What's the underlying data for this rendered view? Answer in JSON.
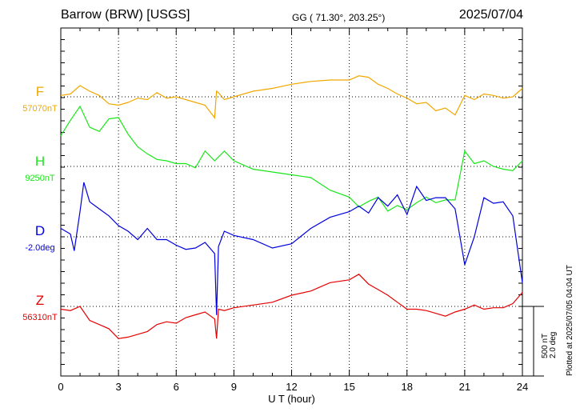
{
  "header": {
    "station": "Barrow (BRW)  [USGS]",
    "coordinates": "GG ( 71.30°, 203.25°)",
    "date": "2025/07/04"
  },
  "footer_note": "Plotted at 2025/07/05 04:04 UT",
  "scale_bar": {
    "labels": [
      "500 nT",
      "2.0 deg"
    ]
  },
  "colors": {
    "F": "#f0a800",
    "H": "#19e619",
    "D": "#0000dd",
    "Z": "#e60000"
  },
  "chart_data": {
    "type": "line",
    "xlabel": "U T (hour)",
    "xlim": [
      0,
      24
    ],
    "xticks": [
      0,
      3,
      6,
      9,
      12,
      15,
      18,
      21,
      24
    ],
    "grid": true,
    "series": [
      {
        "name": "F",
        "baseline_label": "57070nT",
        "color": "#f0a800",
        "x": [
          0,
          0.5,
          1,
          1.5,
          2,
          2.5,
          3,
          3.5,
          4,
          4.5,
          5,
          5.5,
          6,
          6.5,
          7,
          7.5,
          8,
          8.1,
          8.2,
          8.5,
          9,
          10,
          11,
          12,
          13,
          14,
          15,
          15.5,
          16,
          16.5,
          17,
          17.5,
          18,
          18.5,
          19,
          19.5,
          20,
          20.5,
          21,
          21.5,
          22,
          22.5,
          23,
          23.5,
          24
        ],
        "y": [
          10,
          20,
          80,
          40,
          10,
          -50,
          -60,
          -40,
          -10,
          -20,
          30,
          -10,
          0,
          -20,
          -40,
          -60,
          -150,
          40,
          30,
          -20,
          0,
          40,
          60,
          90,
          110,
          120,
          120,
          150,
          140,
          90,
          60,
          20,
          -10,
          -50,
          -40,
          -100,
          -80,
          -130,
          10,
          -20,
          20,
          10,
          -10,
          0,
          60
        ]
      },
      {
        "name": "H",
        "baseline_label": "9250nT",
        "color": "#19e619",
        "x": [
          0,
          0.5,
          1,
          1.5,
          2,
          2.5,
          3,
          3.5,
          4,
          4.5,
          5,
          5.5,
          6,
          6.5,
          7,
          7.5,
          8,
          8.5,
          9,
          9.5,
          10,
          11,
          12,
          13,
          14,
          15,
          15.5,
          16,
          16.5,
          17,
          17.5,
          18,
          18.5,
          19,
          19.5,
          20,
          20.5,
          21,
          21.5,
          22,
          22.5,
          23,
          23.5,
          24
        ],
        "y": [
          220,
          330,
          430,
          280,
          250,
          340,
          350,
          230,
          140,
          90,
          50,
          40,
          20,
          20,
          -10,
          110,
          40,
          110,
          40,
          10,
          -20,
          -40,
          -60,
          -80,
          -170,
          -220,
          -290,
          -250,
          -220,
          -320,
          -280,
          -310,
          -260,
          -220,
          -260,
          -240,
          -240,
          110,
          20,
          40,
          0,
          -20,
          -30,
          40
        ]
      },
      {
        "name": "D",
        "baseline_label": "-2.0deg",
        "color": "#0000dd",
        "x": [
          0,
          0.5,
          0.7,
          1,
          1.2,
          1.5,
          2,
          2.5,
          3,
          3.5,
          4,
          4.5,
          5,
          5.5,
          6,
          6.5,
          7,
          7.5,
          8,
          8.1,
          8.2,
          8.5,
          9,
          10,
          11,
          12,
          13,
          14,
          15,
          15.5,
          16,
          16.5,
          17,
          17.5,
          18,
          18.5,
          19,
          19.5,
          20,
          20.5,
          21,
          21.5,
          22,
          22.5,
          23,
          23.5,
          24
        ],
        "y": [
          60,
          20,
          -100,
          180,
          390,
          250,
          200,
          150,
          80,
          40,
          -20,
          60,
          -20,
          -20,
          -60,
          -90,
          -80,
          -40,
          -120,
          -560,
          -70,
          40,
          10,
          -20,
          -80,
          -50,
          60,
          140,
          180,
          220,
          170,
          280,
          220,
          300,
          160,
          360,
          260,
          280,
          280,
          200,
          -200,
          0,
          280,
          240,
          250,
          150,
          -330
        ]
      },
      {
        "name": "Z",
        "baseline_label": "56310nT",
        "color": "#e60000",
        "x": [
          0,
          0.5,
          1,
          1.5,
          2,
          2.5,
          3,
          3.5,
          4,
          4.5,
          5,
          5.5,
          6,
          6.5,
          7,
          7.5,
          8,
          8.1,
          8.2,
          8.5,
          9,
          10,
          11,
          12,
          13,
          14,
          15,
          15.5,
          16,
          16.5,
          17,
          17.5,
          18,
          18.5,
          19,
          19.5,
          20,
          20.5,
          21,
          21.5,
          22,
          22.5,
          23,
          23.5,
          24
        ],
        "y": [
          -20,
          -30,
          0,
          -100,
          -130,
          -160,
          -230,
          -220,
          -200,
          -180,
          -130,
          -110,
          -120,
          -80,
          -60,
          -40,
          -90,
          -230,
          -20,
          -30,
          -10,
          10,
          30,
          80,
          110,
          170,
          190,
          230,
          160,
          120,
          80,
          30,
          -20,
          -20,
          -30,
          -50,
          -70,
          -40,
          -20,
          10,
          -20,
          -10,
          -10,
          20,
          100
        ]
      }
    ]
  }
}
